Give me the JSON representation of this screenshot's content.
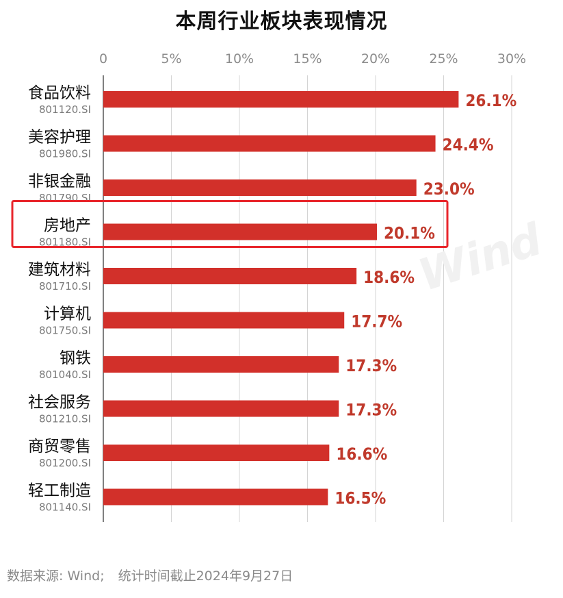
{
  "chart_data": {
    "type": "bar",
    "orientation": "horizontal",
    "title": "本周行业板块表现情况",
    "xlim": [
      0,
      30
    ],
    "xticks": [
      "0",
      "5%",
      "10%",
      "15%",
      "20%",
      "25%",
      "30%"
    ],
    "tick_values": [
      0,
      5,
      10,
      15,
      20,
      25,
      30
    ],
    "categories": [
      {
        "name": "食品饮料",
        "code": "801120.SI"
      },
      {
        "name": "美容护理",
        "code": "801980.SI"
      },
      {
        "name": "非银金融",
        "code": "801790.SI"
      },
      {
        "name": "房地产",
        "code": "801180.SI"
      },
      {
        "name": "建筑材料",
        "code": "801710.SI"
      },
      {
        "name": "计算机",
        "code": "801750.SI"
      },
      {
        "name": "钢铁",
        "code": "801040.SI"
      },
      {
        "name": "社会服务",
        "code": "801210.SI"
      },
      {
        "name": "商贸零售",
        "code": "801200.SI"
      },
      {
        "name": "轻工制造",
        "code": "801140.SI"
      }
    ],
    "values": [
      26.1,
      24.4,
      23.0,
      20.1,
      18.6,
      17.7,
      17.3,
      17.3,
      16.6,
      16.5
    ],
    "value_labels": [
      "26.1%",
      "24.4%",
      "23.0%",
      "20.1%",
      "18.6%",
      "17.7%",
      "17.3%",
      "17.3%",
      "16.6%",
      "16.5%"
    ],
    "highlighted": "房地产",
    "grid": "vertical",
    "bar_color": "#d2302a",
    "label_color": "#c0392b",
    "highlight_color": "#e8262c"
  },
  "watermark": "Wind",
  "footer": {
    "source": "数据来源: Wind;",
    "note": "统计时间截止2024年9月27日"
  }
}
